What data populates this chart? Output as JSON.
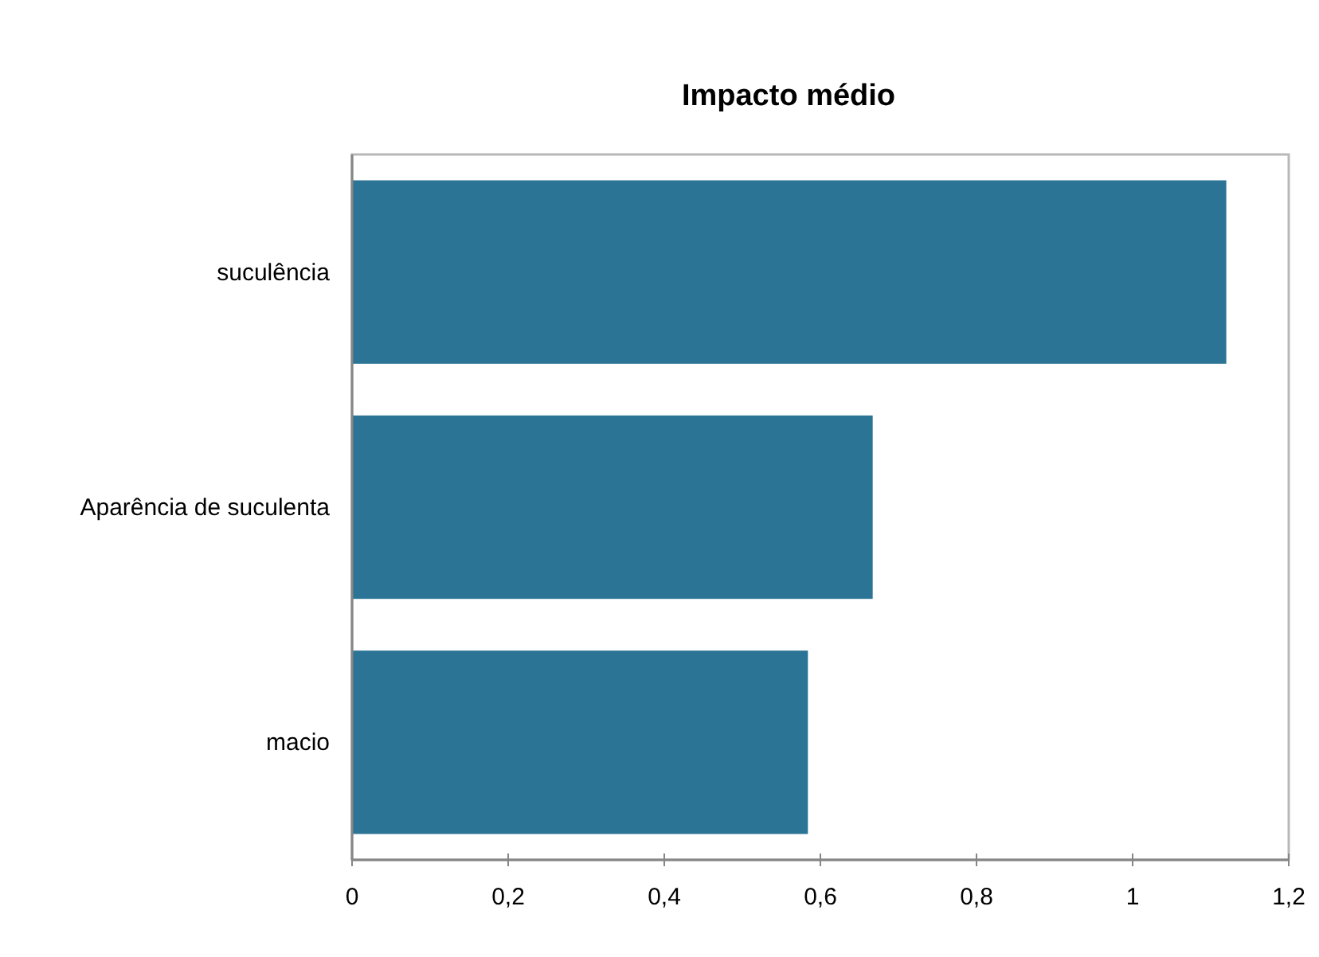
{
  "chart_data": {
    "type": "bar",
    "orientation": "horizontal",
    "title": "Impacto médio",
    "categories": [
      "suculência",
      "Aparência de suculenta",
      "macio"
    ],
    "values": [
      1.12,
      0.667,
      0.584
    ],
    "color": "#2b7495",
    "xlim": [
      0,
      1.2
    ],
    "xticks": [
      0,
      {
        "value": 0.2,
        "label": "0,2"
      },
      {
        "value": 0.4,
        "label": "0,4"
      },
      {
        "value": 0.6,
        "label": "0,6"
      },
      {
        "value": 0.8,
        "label": "0,8"
      },
      1,
      {
        "value": 1.2,
        "label": "1,2"
      }
    ],
    "grid": false
  }
}
